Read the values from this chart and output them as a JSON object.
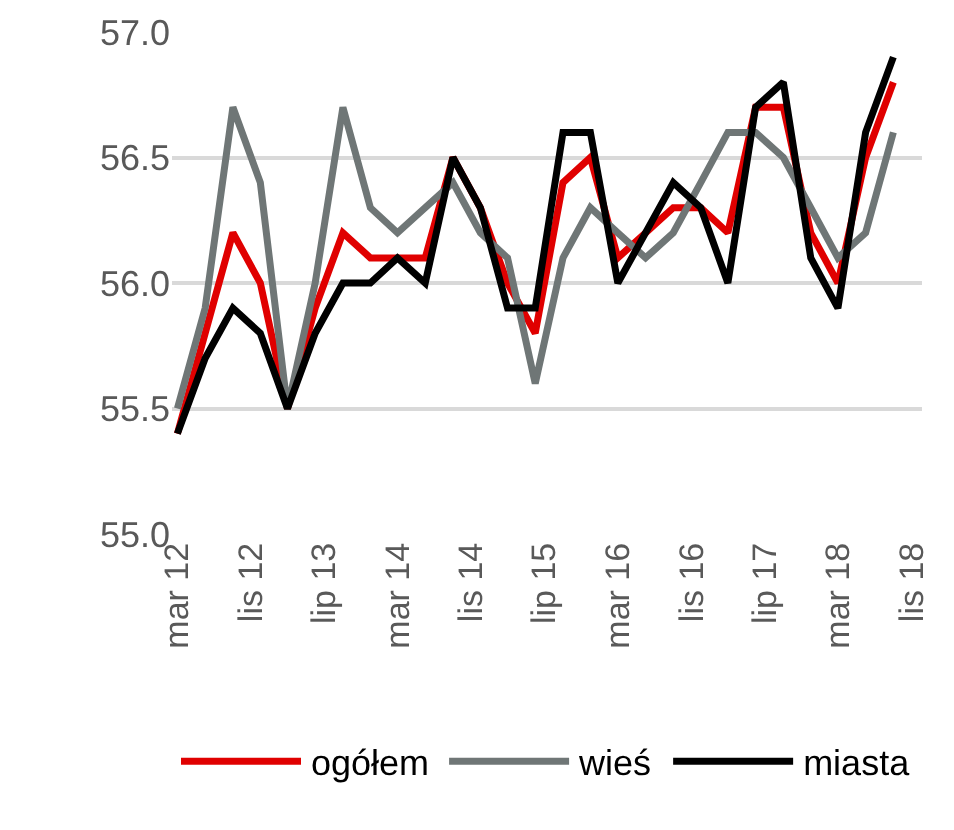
{
  "chart_data": {
    "type": "line",
    "x": [
      "2012-03",
      "2012-06",
      "2012-09",
      "2012-12",
      "2013-03",
      "2013-06",
      "2013-09",
      "2013-12",
      "2014-03",
      "2014-06",
      "2014-09",
      "2014-12",
      "2015-03",
      "2015-06",
      "2015-09",
      "2015-12",
      "2016-03",
      "2016-06",
      "2016-09",
      "2016-12",
      "2017-03",
      "2017-06",
      "2017-09",
      "2017-12",
      "2018-03",
      "2018-06",
      "2018-09"
    ],
    "series": [
      {
        "name": "ogółem",
        "color": "#e00000",
        "values": [
          55.4,
          55.8,
          56.2,
          56.0,
          55.5,
          55.9,
          56.2,
          56.1,
          56.1,
          56.1,
          56.5,
          56.3,
          56.0,
          55.8,
          56.4,
          56.5,
          56.1,
          56.2,
          56.3,
          56.3,
          56.2,
          56.7,
          56.7,
          56.2,
          56.0,
          56.5,
          56.8
        ]
      },
      {
        "name": "wieś",
        "color": "#6f7676",
        "values": [
          55.5,
          55.9,
          56.7,
          56.4,
          55.5,
          56.0,
          56.7,
          56.3,
          56.2,
          56.3,
          56.4,
          56.2,
          56.1,
          55.6,
          56.1,
          56.3,
          56.2,
          56.1,
          56.2,
          56.4,
          56.6,
          56.6,
          56.5,
          56.3,
          56.1,
          56.2,
          56.6
        ]
      },
      {
        "name": "miasta",
        "color": "#000000",
        "values": [
          55.4,
          55.7,
          55.9,
          55.8,
          55.5,
          55.8,
          56.0,
          56.0,
          56.1,
          56.0,
          56.5,
          56.3,
          55.9,
          55.9,
          56.6,
          56.6,
          56.0,
          56.2,
          56.4,
          56.3,
          56.0,
          56.7,
          56.8,
          56.1,
          55.9,
          56.6,
          56.9
        ]
      }
    ],
    "xlim": [
      "2012-02-12",
      "2018-12-05"
    ],
    "xticks": [
      {
        "value": "2012-03",
        "label": "mar 12"
      },
      {
        "value": "2012-11",
        "label": "lis 12"
      },
      {
        "value": "2013-07",
        "label": "lip 13"
      },
      {
        "value": "2014-03",
        "label": "mar 14"
      },
      {
        "value": "2014-11",
        "label": "lis 14"
      },
      {
        "value": "2015-07",
        "label": "lip 15"
      },
      {
        "value": "2016-03",
        "label": "mar 16"
      },
      {
        "value": "2016-11",
        "label": "lis 16"
      },
      {
        "value": "2017-07",
        "label": "lip 17"
      },
      {
        "value": "2018-03",
        "label": "mar 18"
      },
      {
        "value": "2018-11",
        "label": "lis 18"
      }
    ],
    "ylim": [
      55.0,
      57.0
    ],
    "yticks": [
      {
        "value": 55.0,
        "label": "55.0"
      },
      {
        "value": 55.5,
        "label": "55.5"
      },
      {
        "value": 56.0,
        "label": "56.0"
      },
      {
        "value": 56.5,
        "label": "56.5"
      },
      {
        "value": 57.0,
        "label": "57.0"
      }
    ],
    "grid": "y",
    "legend": "bottom",
    "marker": "none",
    "line_style": "solid"
  }
}
